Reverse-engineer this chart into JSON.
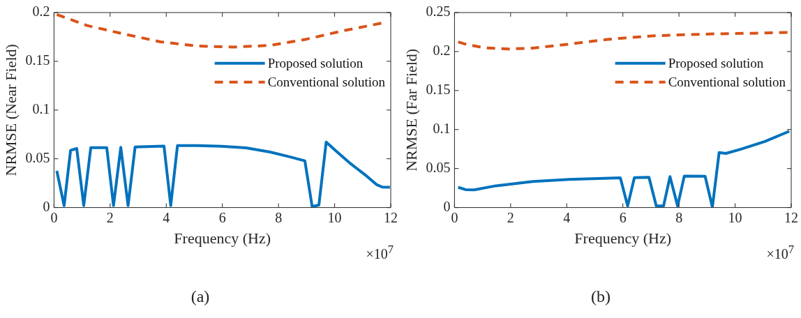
{
  "chart_data": [
    {
      "type": "line",
      "xlabel": "Frequency (Hz)",
      "ylabel": "NRMSE (Near Field)",
      "xlim": [
        0,
        12
      ],
      "xticks": [
        0,
        2,
        4,
        6,
        8,
        10,
        12
      ],
      "ylim": [
        0,
        0.2
      ],
      "yticks": [
        0,
        0.05,
        0.1,
        0.15,
        0.2
      ],
      "grid": false,
      "legend": "top right",
      "annotations": [
        "×10$^{7}$",
        "(a)"
      ],
      "series": [
        {
          "name": "Proposed solution",
          "color": "#0072bd",
          "line_style": "solid",
          "x": [
            0.1,
            0.36,
            0.59,
            0.81,
            1.06,
            1.31,
            1.88,
            2.12,
            2.38,
            2.64,
            2.89,
            3.92,
            4.16,
            4.4,
            5.1,
            5.97,
            6.84,
            7.7,
            8.4,
            8.94,
            9.2,
            9.44,
            9.7,
            10.05,
            10.57,
            11.1,
            11.49,
            11.7,
            11.97
          ],
          "values": [
            0.0376,
            0.002,
            0.0586,
            0.0605,
            0.002,
            0.0614,
            0.0614,
            0.002,
            0.0618,
            0.002,
            0.0622,
            0.063,
            0.002,
            0.0635,
            0.0635,
            0.0629,
            0.0612,
            0.0569,
            0.052,
            0.0479,
            0.001,
            0.0026,
            0.0672,
            0.058,
            0.045,
            0.0333,
            0.0236,
            0.021,
            0.0208
          ]
        },
        {
          "name": "Conventional solution",
          "color": "#d95319",
          "line_style": "dashed",
          "x": [
            0.1,
            1.18,
            2.49,
            3.79,
            5.1,
            6.4,
            7.7,
            9.0,
            10.3,
            11.7
          ],
          "values": [
            0.198,
            0.1867,
            0.178,
            0.17,
            0.1657,
            0.1646,
            0.1663,
            0.1727,
            0.1813,
            0.1893
          ]
        }
      ]
    },
    {
      "type": "line",
      "xlabel": "Frequency (Hz)",
      "ylabel": "NRMSE (Far Field)",
      "xlim": [
        0,
        12
      ],
      "xticks": [
        0,
        2,
        4,
        6,
        8,
        10,
        12
      ],
      "ylim": [
        0,
        0.25
      ],
      "yticks": [
        0,
        0.05,
        0.1,
        0.15,
        0.2,
        0.25
      ],
      "grid": false,
      "legend": "top right",
      "annotations": [
        "×10$^{7}$",
        "(b)"
      ],
      "series": [
        {
          "name": "Proposed solution",
          "color": "#0072bd",
          "line_style": "solid",
          "x": [
            0.13,
            0.39,
            0.7,
            1.48,
            2.79,
            4.09,
            5.91,
            6.17,
            6.41,
            6.93,
            7.19,
            7.45,
            7.68,
            7.95,
            8.19,
            8.93,
            9.19,
            9.43,
            9.67,
            10.19,
            11.06,
            11.93
          ],
          "values": [
            0.026,
            0.023,
            0.0227,
            0.0279,
            0.0333,
            0.0361,
            0.038,
            0.002,
            0.0383,
            0.0388,
            0.002,
            0.002,
            0.0396,
            0.002,
            0.0404,
            0.0402,
            0.0005,
            0.0705,
            0.0694,
            0.0746,
            0.0847,
            0.0978
          ]
        },
        {
          "name": "Conventional solution",
          "color": "#d95319",
          "line_style": "dashed",
          "x": [
            0.13,
            0.44,
            1.05,
            1.92,
            2.79,
            3.66,
            4.53,
            5.4,
            6.27,
            7.14,
            8.01,
            9.32,
            10.63,
            11.93
          ],
          "values": [
            0.2123,
            0.209,
            0.2049,
            0.2033,
            0.2044,
            0.2077,
            0.2115,
            0.2153,
            0.218,
            0.2202,
            0.2213,
            0.2227,
            0.2235,
            0.2246
          ]
        }
      ]
    }
  ]
}
